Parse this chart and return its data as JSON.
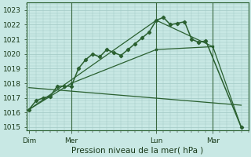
{
  "bg_color": "#c8e8e4",
  "plot_bg_color": "#c8e8e4",
  "grid_color": "#a0c8c4",
  "line_color": "#2a6030",
  "marker_color": "#2a6030",
  "title": "Pression niveau de la mer( hPa )",
  "ylim": [
    1014.8,
    1023.5
  ],
  "yticks": [
    1015,
    1016,
    1017,
    1018,
    1019,
    1020,
    1021,
    1022,
    1023
  ],
  "day_labels": [
    "Dim",
    "Mer",
    "Lun",
    "Mar"
  ],
  "day_positions": [
    0,
    6,
    18,
    26
  ],
  "vline_positions": [
    6,
    18,
    26
  ],
  "xlim": [
    -0.3,
    31
  ],
  "series_main": {
    "x": [
      0,
      1,
      2,
      3,
      4,
      5,
      6,
      7,
      8,
      9,
      10,
      11,
      12,
      13,
      14,
      15,
      16,
      17,
      18,
      19,
      20,
      21,
      22,
      23,
      24,
      25,
      30
    ],
    "y": [
      1016.2,
      1016.8,
      1017.0,
      1017.1,
      1017.8,
      1017.8,
      1017.8,
      1019.0,
      1019.6,
      1020.0,
      1019.8,
      1020.3,
      1020.1,
      1019.9,
      1020.3,
      1020.7,
      1021.1,
      1021.5,
      1022.3,
      1022.5,
      1022.0,
      1022.1,
      1022.2,
      1021.0,
      1020.8,
      1020.9,
      1015.0
    ]
  },
  "series_envelope_top": {
    "x": [
      0,
      18,
      26,
      30
    ],
    "y": [
      1016.2,
      1022.3,
      1020.5,
      1015.0
    ]
  },
  "series_envelope_mid": {
    "x": [
      0,
      6,
      18,
      26
    ],
    "y": [
      1016.2,
      1018.0,
      1020.3,
      1020.5
    ]
  },
  "series_flat": {
    "x": [
      0,
      30
    ],
    "y": [
      1017.7,
      1016.5
    ]
  }
}
